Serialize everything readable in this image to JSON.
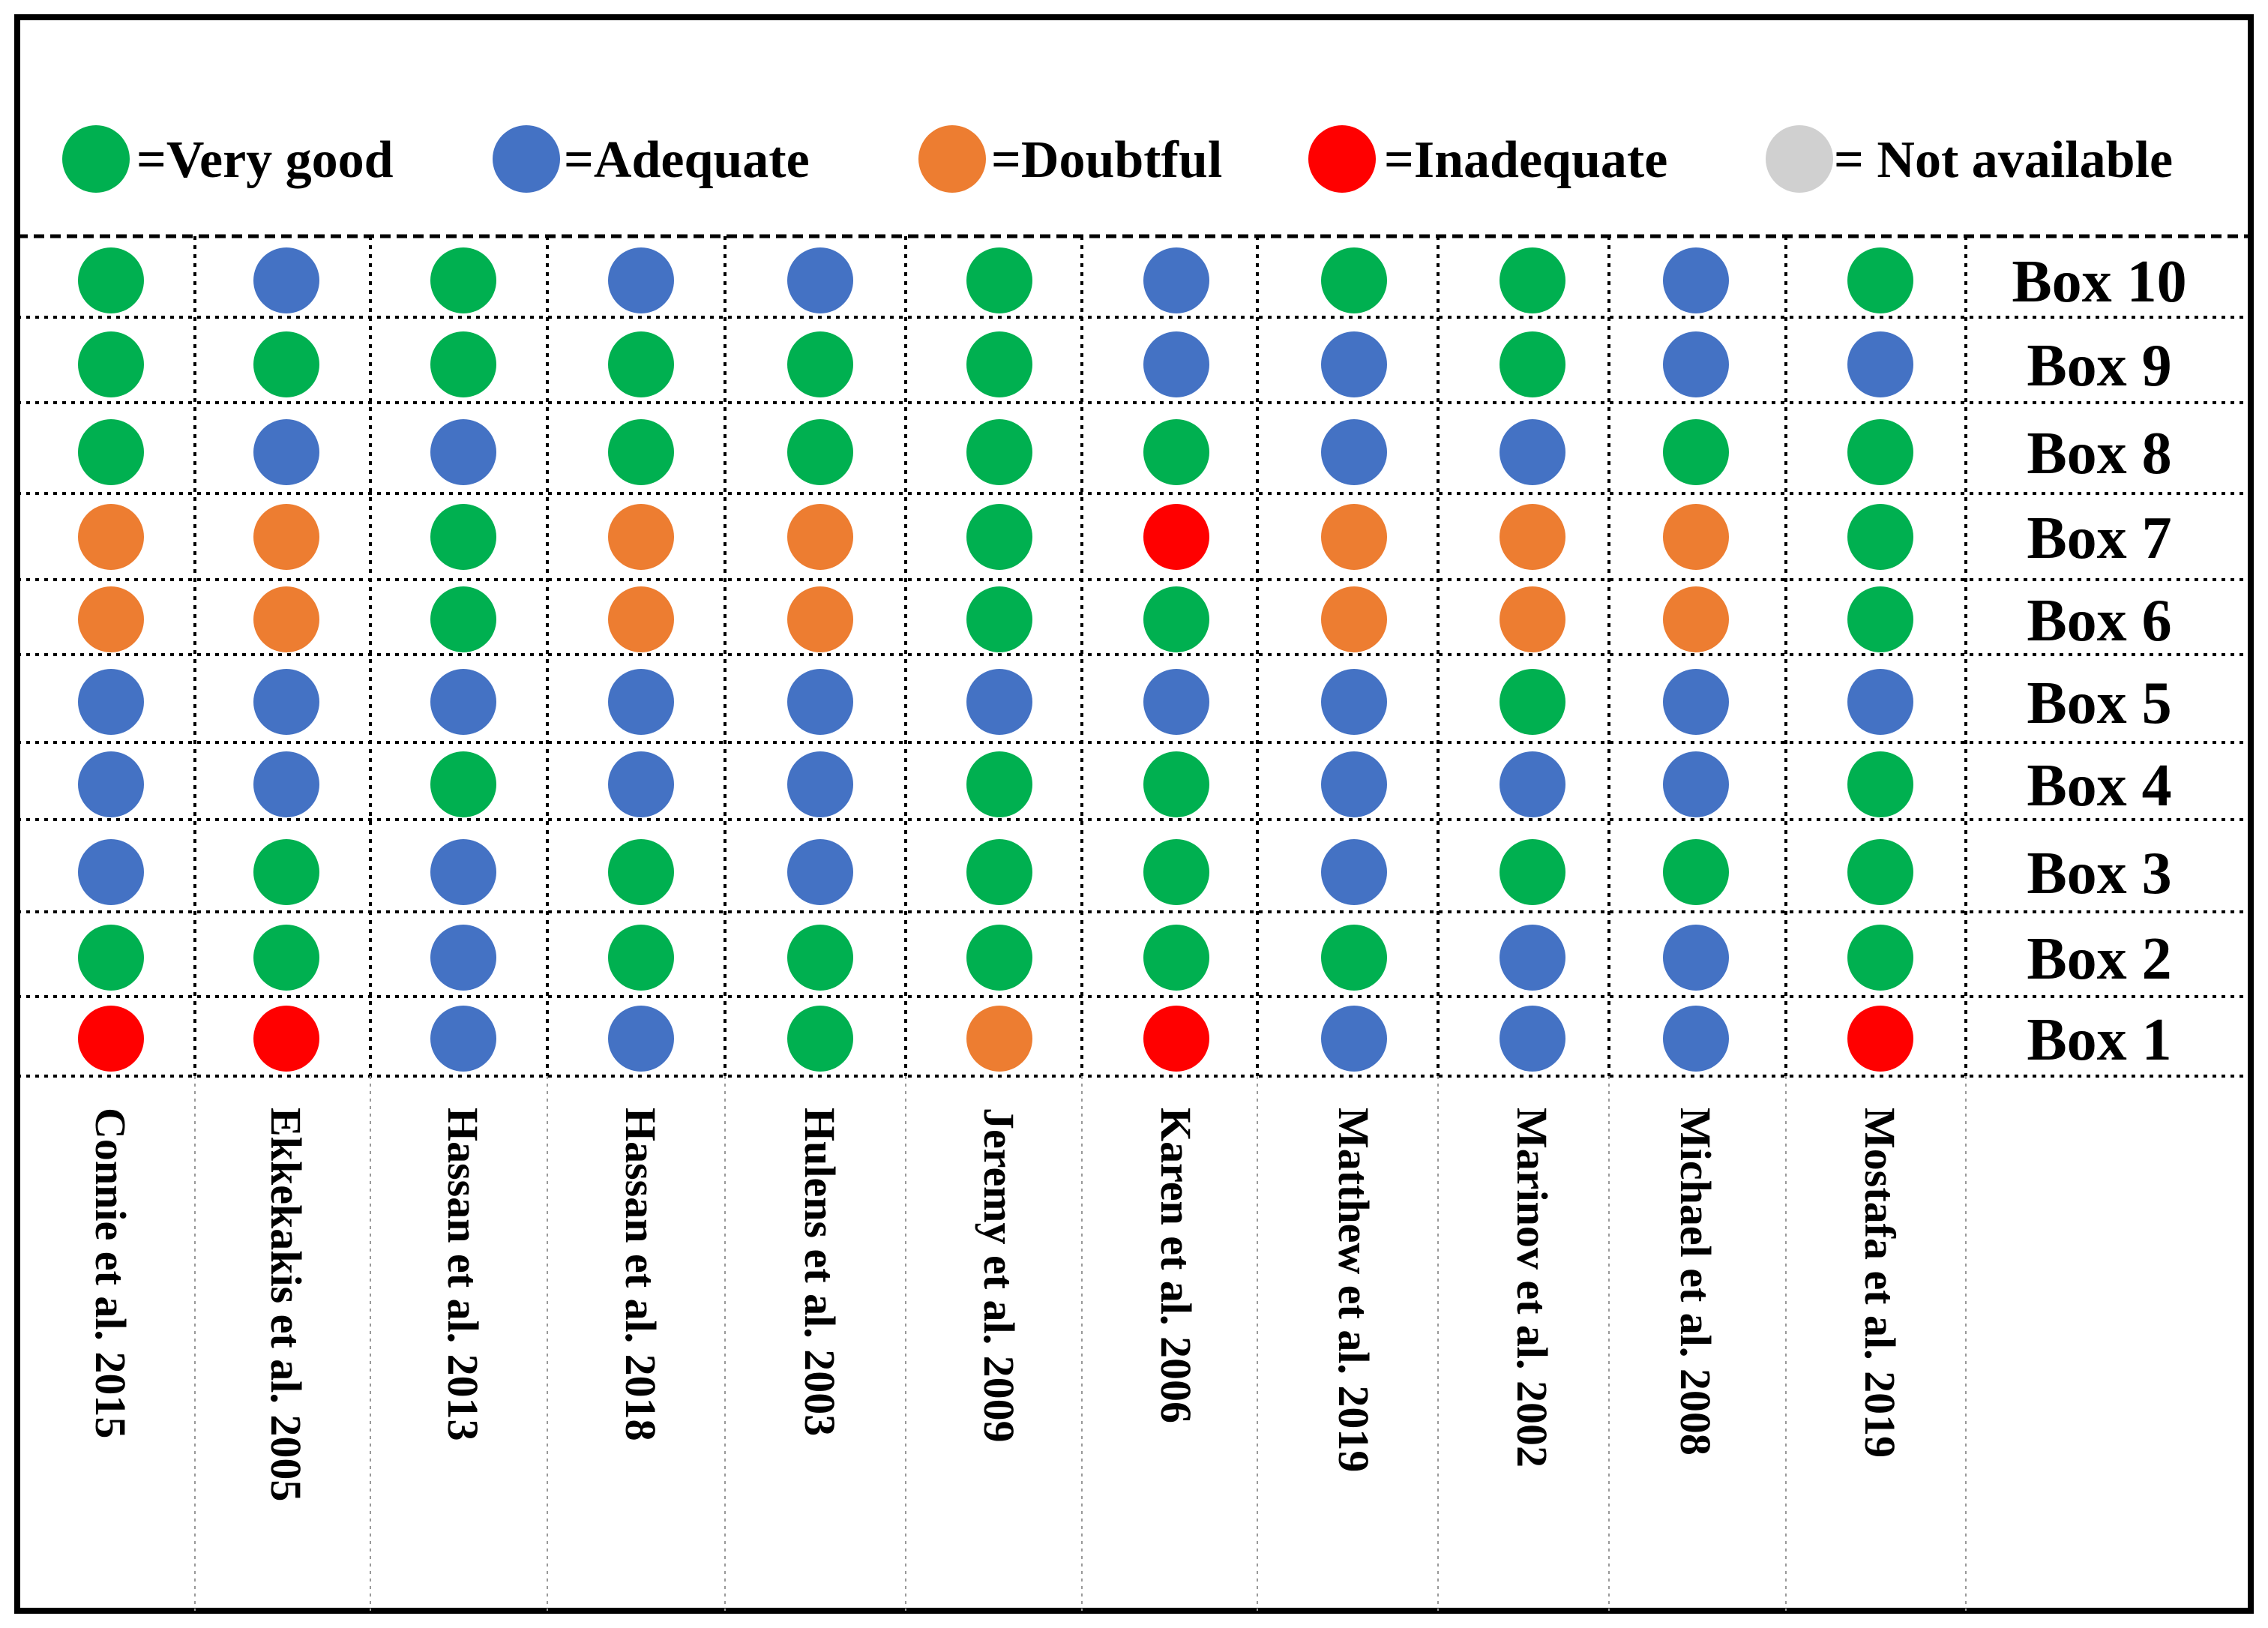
{
  "chart_data": {
    "type": "table",
    "legend": [
      {
        "key": "very_good",
        "label": "=Very good",
        "color": "#00b050"
      },
      {
        "key": "adequate",
        "label": "=Adequate",
        "color": "#4472c4"
      },
      {
        "key": "doubtful",
        "label": "=Doubtful",
        "color": "#ed7d31"
      },
      {
        "key": "inadequate",
        "label": "=Inadequate",
        "color": "#ff0000"
      },
      {
        "key": "not_available",
        "label": "= Not available",
        "color": "#d0d0d0"
      }
    ],
    "rows": [
      "Box 10",
      "Box 9",
      "Box 8",
      "Box 7",
      "Box 6",
      "Box 5",
      "Box 4",
      "Box 3",
      "Box 2",
      "Box 1"
    ],
    "studies": [
      "Connie et al. 2015",
      "Ekkekakis et al. 2005",
      "Hassan et al. 2013",
      "Hassan et al. 2018",
      "Hulens et al. 2003",
      "Jeremy et al. 2009",
      "Karen et al. 2006",
      "Matthew et al. 2019",
      "Marinov et al. 2002",
      "Michael et al. 2008",
      "Mostafa et al. 2019"
    ],
    "ratings": [
      [
        "very_good",
        "adequate",
        "very_good",
        "adequate",
        "adequate",
        "very_good",
        "adequate",
        "very_good",
        "very_good",
        "adequate",
        "very_good"
      ],
      [
        "very_good",
        "very_good",
        "very_good",
        "very_good",
        "very_good",
        "very_good",
        "adequate",
        "adequate",
        "very_good",
        "adequate",
        "adequate"
      ],
      [
        "very_good",
        "adequate",
        "adequate",
        "very_good",
        "very_good",
        "very_good",
        "very_good",
        "adequate",
        "adequate",
        "very_good",
        "very_good"
      ],
      [
        "doubtful",
        "doubtful",
        "very_good",
        "doubtful",
        "doubtful",
        "very_good",
        "inadequate",
        "doubtful",
        "doubtful",
        "doubtful",
        "very_good"
      ],
      [
        "doubtful",
        "doubtful",
        "very_good",
        "doubtful",
        "doubtful",
        "very_good",
        "very_good",
        "doubtful",
        "doubtful",
        "doubtful",
        "very_good"
      ],
      [
        "adequate",
        "adequate",
        "adequate",
        "adequate",
        "adequate",
        "adequate",
        "adequate",
        "adequate",
        "very_good",
        "adequate",
        "adequate"
      ],
      [
        "adequate",
        "adequate",
        "very_good",
        "adequate",
        "adequate",
        "very_good",
        "very_good",
        "adequate",
        "adequate",
        "adequate",
        "very_good"
      ],
      [
        "adequate",
        "very_good",
        "adequate",
        "very_good",
        "adequate",
        "very_good",
        "very_good",
        "adequate",
        "very_good",
        "very_good",
        "very_good"
      ],
      [
        "very_good",
        "very_good",
        "adequate",
        "very_good",
        "very_good",
        "very_good",
        "very_good",
        "very_good",
        "adequate",
        "adequate",
        "very_good"
      ],
      [
        "inadequate",
        "inadequate",
        "adequate",
        "adequate",
        "very_good",
        "doubtful",
        "inadequate",
        "adequate",
        "adequate",
        "adequate",
        "inadequate"
      ]
    ]
  }
}
